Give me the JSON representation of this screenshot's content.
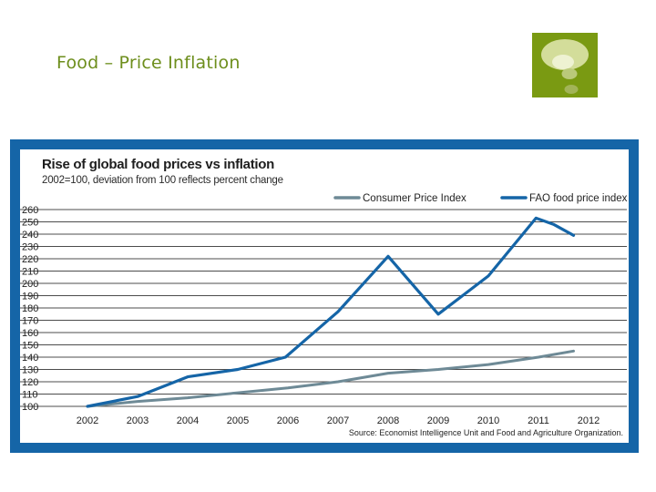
{
  "slide": {
    "title": "Food – Price Inflation",
    "logo_icon": "thought-bubble-icon",
    "accent_color": "#7a9a12",
    "title_color": "#6d8e1c"
  },
  "chart_data": {
    "type": "line",
    "title": "Rise of global food prices vs inflation",
    "subtitle": "2002=100, deviation from 100 reflects percent change",
    "x": [
      "2002",
      "2003",
      "2004",
      "2005",
      "2006",
      "2007",
      "2008",
      "2009",
      "2010",
      "2011",
      "2012"
    ],
    "yticks": [
      100,
      110,
      120,
      130,
      140,
      150,
      160,
      170,
      180,
      190,
      200,
      210,
      220,
      230,
      240,
      250,
      260
    ],
    "ylim": [
      100,
      260
    ],
    "grid": true,
    "legend_position": "top-right",
    "series": [
      {
        "name": "Consumer Price Index",
        "color": "#6e8a96",
        "points": [
          {
            "x": 0,
            "y": 100
          },
          {
            "x": 1,
            "y": 104
          },
          {
            "x": 2,
            "y": 107
          },
          {
            "x": 3,
            "y": 111
          },
          {
            "x": 4,
            "y": 115
          },
          {
            "x": 5,
            "y": 120
          },
          {
            "x": 6,
            "y": 127
          },
          {
            "x": 7,
            "y": 130
          },
          {
            "x": 8,
            "y": 134
          },
          {
            "x": 9,
            "y": 140
          },
          {
            "x": 9.7,
            "y": 145
          }
        ]
      },
      {
        "name": "FAO food price index",
        "color": "#1565a7",
        "points": [
          {
            "x": 0,
            "y": 100
          },
          {
            "x": 1,
            "y": 108
          },
          {
            "x": 2,
            "y": 124
          },
          {
            "x": 3,
            "y": 130
          },
          {
            "x": 3.95,
            "y": 140
          },
          {
            "x": 5,
            "y": 177
          },
          {
            "x": 6,
            "y": 222
          },
          {
            "x": 7,
            "y": 175
          },
          {
            "x": 8,
            "y": 206
          },
          {
            "x": 8.95,
            "y": 253
          },
          {
            "x": 9.3,
            "y": 248
          },
          {
            "x": 9.7,
            "y": 239
          }
        ]
      }
    ],
    "source": "Source: Economist Intelligence Unit and Food and Agriculture Organization."
  }
}
